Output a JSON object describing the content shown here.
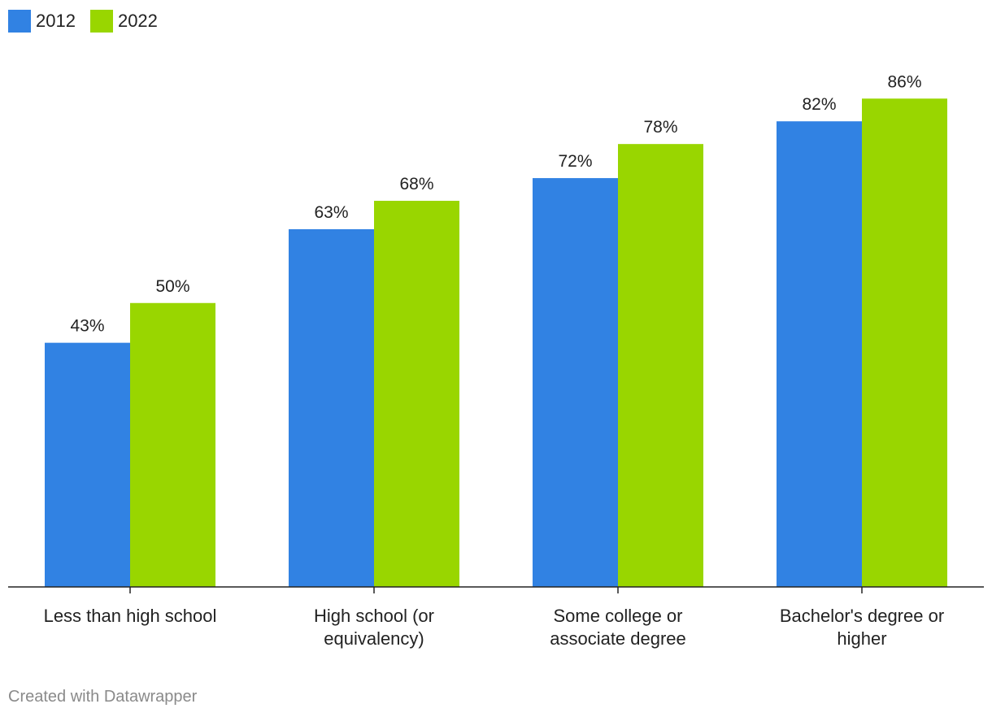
{
  "chart_data": {
    "type": "bar",
    "categories": [
      [
        "Less than high school"
      ],
      [
        "High school (or",
        "equivalency)"
      ],
      [
        "Some college or",
        "associate degree"
      ],
      [
        "Bachelor's degree or",
        "higher"
      ]
    ],
    "series": [
      {
        "name": "2012",
        "color": "#3182e3",
        "values": [
          43,
          63,
          72,
          82
        ],
        "labels": [
          "43%",
          "63%",
          "72%",
          "82%"
        ]
      },
      {
        "name": "2022",
        "color": "#99d600",
        "values": [
          50,
          68,
          78,
          86
        ],
        "labels": [
          "50%",
          "68%",
          "78%",
          "86%"
        ]
      }
    ],
    "ylim": [
      0,
      100
    ],
    "grid": false,
    "legend_position": "top-left"
  },
  "footer": {
    "credit": "Created with Datawrapper"
  }
}
